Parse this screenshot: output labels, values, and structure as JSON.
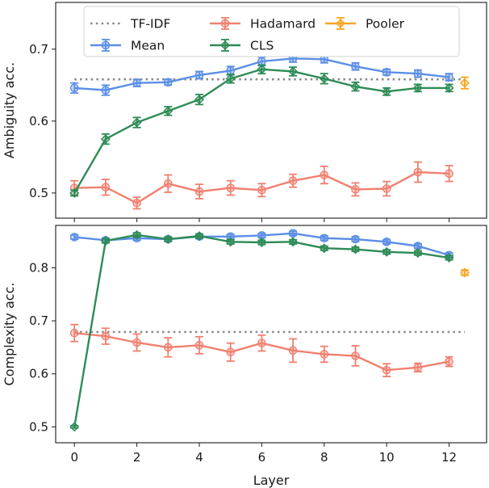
{
  "chart_data": [
    {
      "type": "line",
      "ylabel": "Ambiguity acc.",
      "xlabel": "",
      "xlim": [
        -0.6,
        13.2
      ],
      "ylim": [
        0.465,
        0.765
      ],
      "yticks": [
        0.5,
        0.6,
        0.7
      ],
      "ytick_labels": [
        "0.5",
        "0.6",
        "0.7"
      ],
      "xticks": [
        0,
        2,
        4,
        6,
        8,
        10,
        12
      ],
      "show_xtick_labels": false,
      "legend": {
        "position": "top",
        "columns": 3,
        "entries": [
          {
            "label": "TF-IDF",
            "color": "#8c8c8c",
            "style": "dotted",
            "marker": "none"
          },
          {
            "label": "Hadamard",
            "color": "#f08070",
            "style": "solid",
            "marker": "circle"
          },
          {
            "label": "Pooler",
            "color": "#f5a623",
            "style": "solid",
            "marker": "diamond"
          },
          {
            "label": "Mean",
            "color": "#5b8ee6",
            "style": "solid",
            "marker": "circle"
          },
          {
            "label": "CLS",
            "color": "#2e8b57",
            "style": "solid",
            "marker": "diamond"
          }
        ]
      },
      "reference_line": {
        "name": "TF-IDF",
        "value": 0.658,
        "color": "#8c8c8c",
        "x_range": [
          0,
          12.5
        ]
      },
      "series": [
        {
          "name": "Mean",
          "color": "#5b8ee6",
          "marker": "circle",
          "x": [
            0,
            1,
            2,
            3,
            4,
            5,
            6,
            7,
            8,
            9,
            10,
            11,
            12
          ],
          "values": [
            0.646,
            0.643,
            0.653,
            0.654,
            0.664,
            0.67,
            0.683,
            0.687,
            0.686,
            0.676,
            0.668,
            0.666,
            0.661
          ],
          "errors": [
            0.007,
            0.007,
            0.005,
            0.004,
            0.005,
            0.006,
            0.006,
            0.005,
            0.005,
            0.005,
            0.004,
            0.005,
            0.005
          ]
        },
        {
          "name": "Hadamard",
          "color": "#f08070",
          "marker": "circle",
          "x": [
            0,
            1,
            2,
            3,
            4,
            5,
            6,
            7,
            8,
            9,
            10,
            11,
            12
          ],
          "values": [
            0.507,
            0.508,
            0.486,
            0.513,
            0.502,
            0.507,
            0.504,
            0.517,
            0.525,
            0.505,
            0.506,
            0.529,
            0.527
          ],
          "errors": [
            0.01,
            0.011,
            0.008,
            0.012,
            0.01,
            0.01,
            0.009,
            0.009,
            0.012,
            0.009,
            0.01,
            0.014,
            0.011
          ]
        },
        {
          "name": "CLS",
          "color": "#2e8b57",
          "marker": "diamond",
          "x": [
            0,
            1,
            2,
            3,
            4,
            5,
            6,
            7,
            8,
            9,
            10,
            11,
            12
          ],
          "values": [
            0.5,
            0.575,
            0.598,
            0.614,
            0.63,
            0.659,
            0.672,
            0.669,
            0.659,
            0.648,
            0.641,
            0.646,
            0.646
          ],
          "errors": [
            0.004,
            0.007,
            0.007,
            0.006,
            0.007,
            0.006,
            0.006,
            0.006,
            0.007,
            0.006,
            0.005,
            0.005,
            0.005
          ]
        },
        {
          "name": "Pooler",
          "color": "#f5a623",
          "marker": "diamond",
          "x": [
            12.5
          ],
          "values": [
            0.653
          ],
          "errors": [
            0.008
          ]
        }
      ]
    },
    {
      "type": "line",
      "ylabel": "Complexity acc.",
      "xlabel": "Layer",
      "xlim": [
        -0.6,
        13.2
      ],
      "ylim": [
        0.47,
        0.88
      ],
      "yticks": [
        0.5,
        0.6,
        0.7,
        0.8
      ],
      "ytick_labels": [
        "0.5",
        "0.6",
        "0.7",
        "0.8"
      ],
      "xticks": [
        0,
        2,
        4,
        6,
        8,
        10,
        12
      ],
      "xtick_labels": [
        "0",
        "2",
        "4",
        "6",
        "8",
        "10",
        "12"
      ],
      "show_xtick_labels": true,
      "reference_line": {
        "name": "TF-IDF",
        "value": 0.679,
        "color": "#8c8c8c",
        "x_range": [
          0,
          12.5
        ]
      },
      "series": [
        {
          "name": "Mean",
          "color": "#5b8ee6",
          "marker": "circle",
          "x": [
            0,
            1,
            2,
            3,
            4,
            5,
            6,
            7,
            8,
            9,
            10,
            11,
            12
          ],
          "values": [
            0.858,
            0.852,
            0.856,
            0.854,
            0.859,
            0.859,
            0.861,
            0.865,
            0.856,
            0.854,
            0.849,
            0.841,
            0.824
          ],
          "errors": [
            0.004,
            0.004,
            0.004,
            0.004,
            0.004,
            0.004,
            0.004,
            0.004,
            0.004,
            0.004,
            0.004,
            0.004,
            0.004
          ]
        },
        {
          "name": "Hadamard",
          "color": "#f08070",
          "marker": "circle",
          "x": [
            0,
            1,
            2,
            3,
            4,
            5,
            6,
            7,
            8,
            9,
            10,
            11,
            12
          ],
          "values": [
            0.677,
            0.671,
            0.659,
            0.65,
            0.654,
            0.641,
            0.658,
            0.644,
            0.637,
            0.634,
            0.607,
            0.612,
            0.623
          ],
          "errors": [
            0.016,
            0.015,
            0.016,
            0.018,
            0.016,
            0.017,
            0.015,
            0.022,
            0.015,
            0.019,
            0.012,
            0.008,
            0.009
          ]
        },
        {
          "name": "CLS",
          "color": "#2e8b57",
          "marker": "diamond",
          "x": [
            0,
            1,
            2,
            3,
            4,
            5,
            6,
            7,
            8,
            9,
            10,
            11,
            12
          ],
          "values": [
            0.5,
            0.851,
            0.862,
            0.854,
            0.86,
            0.849,
            0.848,
            0.849,
            0.837,
            0.835,
            0.83,
            0.828,
            0.819
          ],
          "errors": [
            0.002,
            0.004,
            0.004,
            0.004,
            0.004,
            0.004,
            0.004,
            0.004,
            0.004,
            0.004,
            0.004,
            0.004,
            0.004
          ]
        },
        {
          "name": "Pooler",
          "color": "#f5a623",
          "marker": "diamond",
          "x": [
            12.5
          ],
          "values": [
            0.791
          ],
          "errors": [
            0.005
          ]
        }
      ]
    }
  ]
}
